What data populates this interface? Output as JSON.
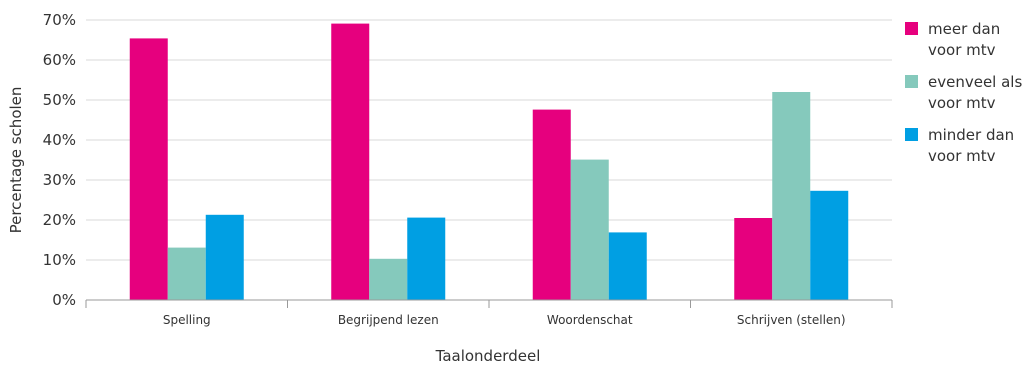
{
  "chart_data": {
    "type": "bar",
    "title": "",
    "xlabel": "Taalonderdeel",
    "ylabel": "Percentage scholen",
    "ylim": [
      0,
      70
    ],
    "yticks": [
      "0%",
      "10%",
      "20%",
      "30%",
      "40%",
      "50%",
      "60%",
      "70%"
    ],
    "categories": [
      "Spelling",
      "Begrijpend lezen",
      "Woordenschat",
      "Schrijven (stellen)"
    ],
    "grid": true,
    "legend_position": "right",
    "series": [
      {
        "name": "meer dan voor mtv",
        "legend_lines": [
          "meer dan",
          "voor mtv"
        ],
        "color": "#e6007e",
        "values": [
          65.4,
          69.1,
          47.6,
          20.5
        ]
      },
      {
        "name": "evenveel als voor mtv",
        "legend_lines": [
          "evenveel als",
          "voor mtv"
        ],
        "color": "#85c9bc",
        "values": [
          13.1,
          10.3,
          35.1,
          52.0
        ]
      },
      {
        "name": "minder dan voor mtv",
        "legend_lines": [
          "minder dan",
          "voor mtv"
        ],
        "color": "#009fe3",
        "values": [
          21.3,
          20.6,
          16.9,
          27.3
        ]
      }
    ]
  }
}
